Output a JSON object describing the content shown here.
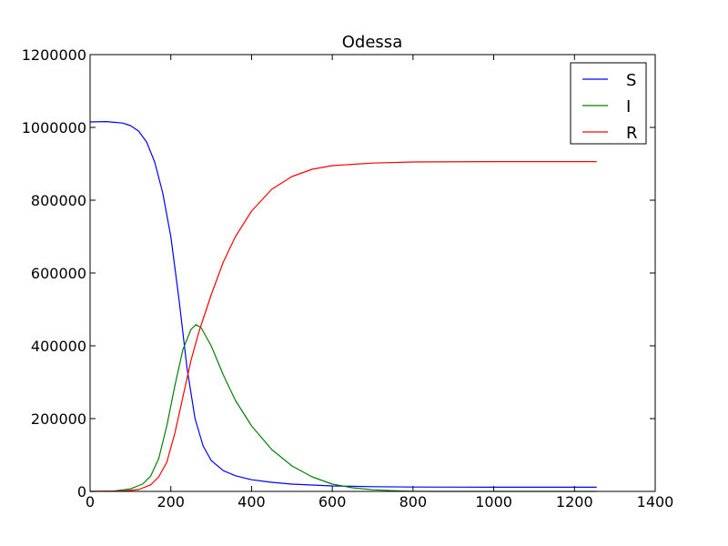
{
  "chart_data": {
    "type": "line",
    "title": "Odessa",
    "xlabel": "",
    "ylabel": "",
    "xlim": [
      0,
      1400
    ],
    "ylim": [
      0,
      1200000
    ],
    "xticks": [
      0,
      200,
      400,
      600,
      800,
      1000,
      1200,
      1400
    ],
    "yticks": [
      0,
      200000,
      400000,
      600000,
      800000,
      1000000,
      1200000
    ],
    "grid": false,
    "legend_position": "top-right",
    "series": [
      {
        "name": "S",
        "color": "#0000ff",
        "points": [
          [
            0,
            1015000
          ],
          [
            40,
            1016000
          ],
          [
            80,
            1012000
          ],
          [
            100,
            1005000
          ],
          [
            120,
            990000
          ],
          [
            140,
            960000
          ],
          [
            160,
            905000
          ],
          [
            180,
            820000
          ],
          [
            200,
            700000
          ],
          [
            220,
            530000
          ],
          [
            240,
            340000
          ],
          [
            260,
            200000
          ],
          [
            280,
            125000
          ],
          [
            300,
            85000
          ],
          [
            330,
            57000
          ],
          [
            360,
            43000
          ],
          [
            400,
            32000
          ],
          [
            450,
            25000
          ],
          [
            500,
            20000
          ],
          [
            600,
            15000
          ],
          [
            700,
            13000
          ],
          [
            800,
            12000
          ],
          [
            1000,
            11500
          ],
          [
            1255,
            11500
          ]
        ]
      },
      {
        "name": "I",
        "color": "#008000",
        "points": [
          [
            0,
            0
          ],
          [
            60,
            1000
          ],
          [
            100,
            7000
          ],
          [
            130,
            20000
          ],
          [
            150,
            42000
          ],
          [
            170,
            90000
          ],
          [
            190,
            180000
          ],
          [
            210,
            290000
          ],
          [
            230,
            390000
          ],
          [
            250,
            445000
          ],
          [
            262,
            458000
          ],
          [
            275,
            450000
          ],
          [
            300,
            400000
          ],
          [
            330,
            320000
          ],
          [
            360,
            250000
          ],
          [
            400,
            180000
          ],
          [
            450,
            115000
          ],
          [
            500,
            70000
          ],
          [
            550,
            40000
          ],
          [
            600,
            20000
          ],
          [
            650,
            10000
          ],
          [
            700,
            4500
          ],
          [
            750,
            2000
          ],
          [
            800,
            500
          ],
          [
            850,
            0
          ],
          [
            1255,
            0
          ]
        ]
      },
      {
        "name": "R",
        "color": "#ff0000",
        "points": [
          [
            0,
            0
          ],
          [
            80,
            1000
          ],
          [
            120,
            5000
          ],
          [
            150,
            18000
          ],
          [
            170,
            40000
          ],
          [
            190,
            80000
          ],
          [
            210,
            160000
          ],
          [
            230,
            260000
          ],
          [
            250,
            360000
          ],
          [
            270,
            440000
          ],
          [
            300,
            540000
          ],
          [
            330,
            630000
          ],
          [
            360,
            700000
          ],
          [
            400,
            770000
          ],
          [
            450,
            830000
          ],
          [
            500,
            865000
          ],
          [
            550,
            885000
          ],
          [
            600,
            895000
          ],
          [
            700,
            902000
          ],
          [
            800,
            905000
          ],
          [
            1000,
            906000
          ],
          [
            1255,
            906000
          ]
        ]
      }
    ]
  }
}
